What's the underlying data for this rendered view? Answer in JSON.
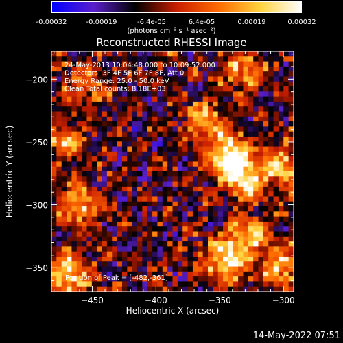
{
  "colorbar": {
    "ticks": [
      "-0.00032",
      "-0.00019",
      "-6.4e-05",
      "6.4e-05",
      "0.00019",
      "0.00032"
    ],
    "unit_label": "(photons cm⁻² s⁻¹ asec⁻²)",
    "range": [
      -0.00032,
      0.00032
    ],
    "colors": [
      "#0000ff",
      "#5a1fcc",
      "#000000",
      "#c81e00",
      "#ff6a00",
      "#ffd23c",
      "#ffffff"
    ]
  },
  "chart_data": {
    "type": "heatmap",
    "title": "Reconstructed RHESSI Image",
    "xlabel": "Heliocentric X (arcsec)",
    "ylabel": "Heliocentric Y (arcsec)",
    "xlim": [
      -482,
      -292
    ],
    "ylim": [
      -369,
      -178
    ],
    "x_ticks": [
      -450,
      -400,
      -350,
      -300
    ],
    "x_tick_labels": [
      "−450",
      "−400",
      "−350",
      "−300"
    ],
    "y_ticks": [
      -200,
      -250,
      -300,
      -350
    ],
    "y_tick_labels": [
      "−200",
      "−250",
      "−300",
      "−350"
    ],
    "annotations": [
      "24-May-2013 10:04:48.000 to 10:09:52.000",
      "Detectors: 3F 4F 5F 6F 7F 8F, Att 0",
      "Energy Range: 25.0 - 50.0 keV",
      "Clean    Total counts: 8.18E+03"
    ],
    "peak_label": "Position of Peak = [-482,-361]",
    "peak": [
      -482,
      -361
    ],
    "bright_regions": [
      {
        "x": -343,
        "y": -262,
        "strength": 1.0
      },
      {
        "x": -330,
        "y": -280,
        "strength": 0.8
      },
      {
        "x": -360,
        "y": -235,
        "strength": 0.6
      },
      {
        "x": -300,
        "y": -270,
        "strength": 0.75
      },
      {
        "x": -345,
        "y": -345,
        "strength": 0.9
      },
      {
        "x": -325,
        "y": -325,
        "strength": 0.7
      },
      {
        "x": -470,
        "y": -355,
        "strength": 0.9
      },
      {
        "x": -460,
        "y": -300,
        "strength": 0.7
      },
      {
        "x": -470,
        "y": -250,
        "strength": 0.6
      },
      {
        "x": -455,
        "y": -205,
        "strength": 0.5
      },
      {
        "x": -330,
        "y": -195,
        "strength": 0.55
      },
      {
        "x": -300,
        "y": -350,
        "strength": 0.6
      }
    ]
  },
  "datestamp": "14-May-2022 07:51"
}
